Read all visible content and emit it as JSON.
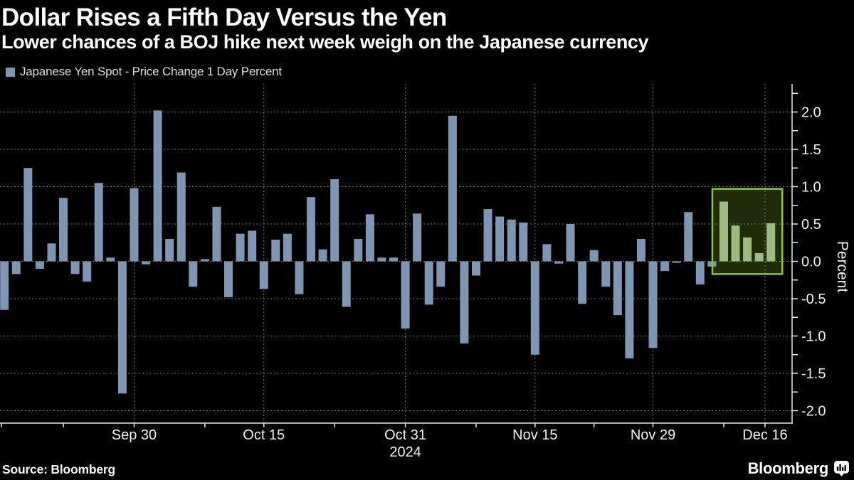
{
  "header": {
    "title": "Dollar Rises a Fifth Day Versus the Yen",
    "subtitle": "Lower chances of a BOJ hike next week weigh on the Japanese currency"
  },
  "legend": {
    "label": "Japanese Yen Spot - Price Change 1 Day Percent",
    "swatch_color": "#7e96b4"
  },
  "footer": {
    "source": "Source: Bloomberg",
    "logo": "Bloomberg"
  },
  "chart_data": {
    "type": "bar",
    "title": "Dollar Rises a Fifth Day Versus the Yen",
    "subtitle": "Lower chances of a BOJ hike next week weigh on the Japanese currency",
    "series_name": "Japanese Yen Spot - Price Change 1 Day Percent",
    "ylabel": "Percent",
    "ylim": [
      -2.17,
      2.38
    ],
    "grid": true,
    "legend_position": "top-left",
    "y_major_ticks": [
      2.0,
      1.5,
      1.0,
      0.5,
      0.0,
      -0.5,
      -1.0,
      -1.5,
      -2.0
    ],
    "y_minor_step": 0.25,
    "x_axis_year": "2024",
    "year_tick_pos": 34,
    "x_ticks": [
      {
        "pos": -0.25,
        "label": ""
      },
      {
        "pos": 5,
        "label": ""
      },
      {
        "pos": 11,
        "label": "Sep 30"
      },
      {
        "pos": 17,
        "label": ""
      },
      {
        "pos": 22,
        "label": "Oct 15"
      },
      {
        "pos": 28,
        "label": ""
      },
      {
        "pos": 34,
        "label": "Oct 31"
      },
      {
        "pos": 40,
        "label": ""
      },
      {
        "pos": 45,
        "label": "Nov 15"
      },
      {
        "pos": 50,
        "label": ""
      },
      {
        "pos": 55,
        "label": "Nov 29"
      },
      {
        "pos": 61,
        "label": ""
      },
      {
        "pos": 64.5,
        "label": "Dec 16"
      }
    ],
    "x_gridline_positions": [
      11,
      22,
      34,
      45,
      55,
      64.5
    ],
    "values": [
      -0.65,
      -0.17,
      1.25,
      -0.1,
      0.24,
      0.85,
      -0.17,
      -0.27,
      1.05,
      0.05,
      -1.77,
      0.98,
      -0.04,
      2.02,
      0.3,
      1.19,
      -0.34,
      0.03,
      0.73,
      -0.48,
      0.37,
      0.41,
      -0.37,
      0.29,
      0.37,
      -0.44,
      0.86,
      0.16,
      1.1,
      -0.61,
      0.3,
      0.63,
      0.05,
      0.05,
      -0.9,
      0.64,
      -0.58,
      -0.34,
      1.95,
      -1.1,
      -0.19,
      0.7,
      0.6,
      0.56,
      0.52,
      -1.25,
      0.23,
      -0.03,
      0.5,
      -0.57,
      0.15,
      -0.34,
      -0.72,
      -1.3,
      0.3,
      -1.16,
      -0.13,
      -0.02,
      0.66,
      -0.31,
      -0.07,
      0.8,
      0.48,
      0.32,
      0.11,
      0.51
    ],
    "highlight": {
      "start_index": 61,
      "end_index": 65,
      "top": 0.97,
      "bottom": -0.17
    },
    "colors": {
      "background": "#000000",
      "bar": "#7e96b4",
      "highlight_bar": "#9dbb7d",
      "highlight_border": "#8ac832",
      "highlight_fill": "rgba(139,199,40,0.22)",
      "grid": "#737364",
      "axis": "#e8e8e8",
      "text": "#f2f2f2"
    }
  }
}
